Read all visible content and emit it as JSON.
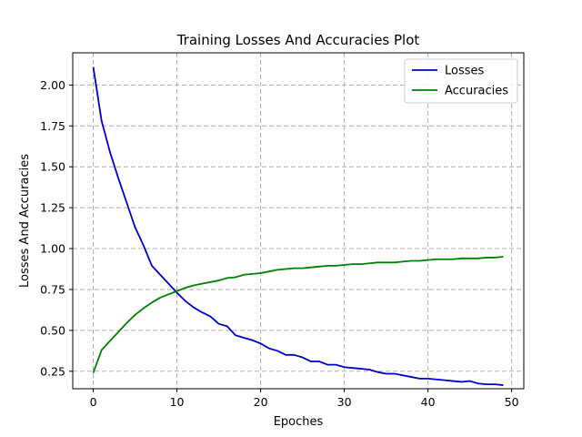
{
  "chart_data": {
    "type": "line",
    "title": "Training Losses And Accuracies Plot",
    "xlabel": "Epoches",
    "ylabel": "Losses And Accuracies",
    "xlim": [
      -2.45,
      51.45
    ],
    "ylim": [
      0.143,
      2.197
    ],
    "xticks": [
      0,
      10,
      20,
      30,
      40,
      50
    ],
    "yticks": [
      0.25,
      0.5,
      0.75,
      1.0,
      1.25,
      1.5,
      1.75,
      2.0
    ],
    "xtick_labels": [
      "0",
      "10",
      "20",
      "30",
      "40",
      "50"
    ],
    "ytick_labels": [
      "0.25",
      "0.50",
      "0.75",
      "1.00",
      "1.25",
      "1.50",
      "1.75",
      "2.00"
    ],
    "grid": true,
    "legend_position": "top-right",
    "x": [
      0,
      1,
      2,
      3,
      4,
      5,
      6,
      7,
      8,
      9,
      10,
      11,
      12,
      13,
      14,
      15,
      16,
      17,
      18,
      19,
      20,
      21,
      22,
      23,
      24,
      25,
      26,
      27,
      28,
      29,
      30,
      31,
      32,
      33,
      34,
      35,
      36,
      37,
      38,
      39,
      40,
      41,
      42,
      43,
      44,
      45,
      46,
      47,
      48,
      49
    ],
    "series": [
      {
        "name": "Losses",
        "color": "#0000cc",
        "values": [
          2.11,
          1.78,
          1.59,
          1.43,
          1.28,
          1.13,
          1.02,
          0.895,
          0.84,
          0.785,
          0.73,
          0.68,
          0.64,
          0.61,
          0.585,
          0.54,
          0.525,
          0.47,
          0.455,
          0.44,
          0.42,
          0.39,
          0.375,
          0.35,
          0.35,
          0.335,
          0.31,
          0.31,
          0.29,
          0.29,
          0.275,
          0.27,
          0.265,
          0.26,
          0.245,
          0.235,
          0.235,
          0.225,
          0.215,
          0.205,
          0.205,
          0.2,
          0.195,
          0.19,
          0.185,
          0.19,
          0.175,
          0.17,
          0.17,
          0.165
        ]
      },
      {
        "name": "Accuracies",
        "color": "#008000",
        "values": [
          0.24,
          0.38,
          0.435,
          0.49,
          0.545,
          0.595,
          0.635,
          0.67,
          0.7,
          0.72,
          0.74,
          0.76,
          0.775,
          0.785,
          0.795,
          0.805,
          0.82,
          0.825,
          0.84,
          0.845,
          0.85,
          0.86,
          0.87,
          0.875,
          0.88,
          0.88,
          0.885,
          0.89,
          0.895,
          0.895,
          0.9,
          0.905,
          0.905,
          0.91,
          0.915,
          0.915,
          0.915,
          0.92,
          0.925,
          0.925,
          0.93,
          0.935,
          0.935,
          0.935,
          0.94,
          0.94,
          0.94,
          0.945,
          0.945,
          0.95
        ]
      }
    ]
  }
}
